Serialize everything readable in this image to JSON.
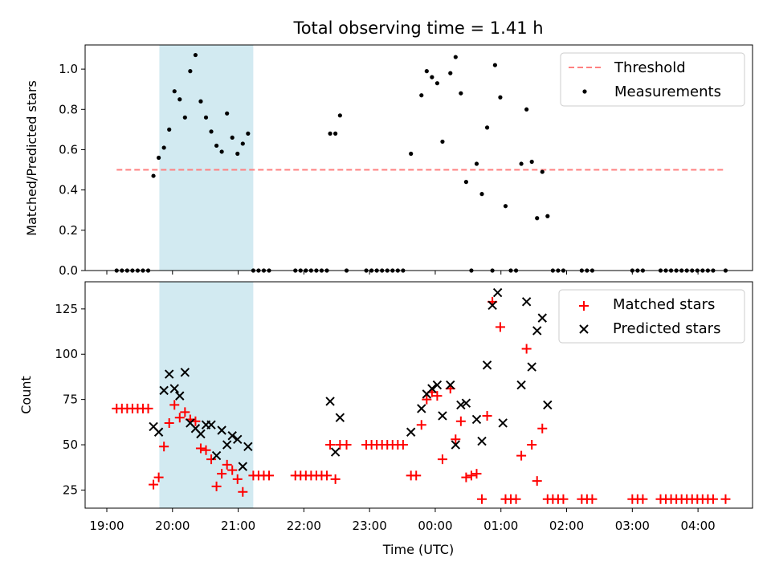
{
  "chart_data": [
    {
      "type": "scatter",
      "panel": "top",
      "title": "Total observing time = 1.41 h",
      "xlabel": "",
      "ylabel": "Matched/Predicted stars",
      "xlim": [
        18.67,
        28.83
      ],
      "ylim": [
        0,
        1.12
      ],
      "yticks": [
        0.0,
        0.2,
        0.4,
        0.6,
        0.8,
        1.0
      ],
      "ytick_labels": [
        "0.0",
        "0.2",
        "0.4",
        "0.6",
        "0.8",
        "1.0"
      ],
      "legend": {
        "placement": "top-right",
        "entries": [
          {
            "label": "Threshold",
            "kind": "dashed-line",
            "color": "#ff8080"
          },
          {
            "label": "Measurements",
            "kind": "dot",
            "color": "#000000"
          }
        ]
      },
      "highlight_span": {
        "x": [
          19.8,
          21.23
        ],
        "color": "#add8e6"
      },
      "threshold": {
        "x": [
          19.15,
          28.42
        ],
        "y": 0.5
      },
      "series": [
        {
          "name": "Measurements",
          "color": "#000000",
          "points": [
            [
              19.15,
              0
            ],
            [
              19.23,
              0
            ],
            [
              19.31,
              0
            ],
            [
              19.39,
              0
            ],
            [
              19.47,
              0
            ],
            [
              19.55,
              0
            ],
            [
              19.63,
              0
            ],
            [
              19.71,
              0.47
            ],
            [
              19.79,
              0.56
            ],
            [
              19.87,
              0.61
            ],
            [
              19.95,
              0.7
            ],
            [
              20.03,
              0.89
            ],
            [
              20.11,
              0.85
            ],
            [
              20.19,
              0.76
            ],
            [
              20.27,
              0.99
            ],
            [
              20.35,
              1.07
            ],
            [
              20.43,
              0.84
            ],
            [
              20.51,
              0.76
            ],
            [
              20.59,
              0.69
            ],
            [
              20.67,
              0.62
            ],
            [
              20.75,
              0.59
            ],
            [
              20.83,
              0.78
            ],
            [
              20.91,
              0.66
            ],
            [
              20.99,
              0.58
            ],
            [
              21.07,
              0.63
            ],
            [
              21.15,
              0.68
            ],
            [
              21.23,
              0
            ],
            [
              21.31,
              0
            ],
            [
              21.39,
              0
            ],
            [
              21.47,
              0
            ],
            [
              21.87,
              0
            ],
            [
              21.95,
              0
            ],
            [
              22.03,
              0
            ],
            [
              22.11,
              0
            ],
            [
              22.19,
              0
            ],
            [
              22.27,
              0
            ],
            [
              22.35,
              0
            ],
            [
              22.4,
              0.68
            ],
            [
              22.48,
              0.68
            ],
            [
              22.55,
              0.77
            ],
            [
              22.65,
              0
            ],
            [
              22.95,
              0
            ],
            [
              23.03,
              0
            ],
            [
              23.11,
              0
            ],
            [
              23.19,
              0
            ],
            [
              23.27,
              0
            ],
            [
              23.35,
              0
            ],
            [
              23.43,
              0
            ],
            [
              23.51,
              0
            ],
            [
              23.63,
              0.58
            ],
            [
              23.79,
              0.87
            ],
            [
              23.87,
              0.99
            ],
            [
              23.95,
              0.96
            ],
            [
              24.03,
              0.93
            ],
            [
              24.11,
              0.64
            ],
            [
              24.23,
              0.98
            ],
            [
              24.31,
              1.06
            ],
            [
              24.39,
              0.88
            ],
            [
              24.47,
              0.44
            ],
            [
              24.55,
              0
            ],
            [
              24.63,
              0.53
            ],
            [
              24.71,
              0.38
            ],
            [
              24.79,
              0.71
            ],
            [
              24.87,
              0
            ],
            [
              24.91,
              1.02
            ],
            [
              24.99,
              0.86
            ],
            [
              25.07,
              0.32
            ],
            [
              25.15,
              0
            ],
            [
              25.23,
              0
            ],
            [
              25.31,
              0.53
            ],
            [
              25.39,
              0.8
            ],
            [
              25.47,
              0.54
            ],
            [
              25.55,
              0.26
            ],
            [
              25.63,
              0.49
            ],
            [
              25.71,
              0.27
            ],
            [
              25.79,
              0
            ],
            [
              25.87,
              0
            ],
            [
              25.95,
              0
            ],
            [
              26.23,
              0
            ],
            [
              26.31,
              0
            ],
            [
              26.39,
              0
            ],
            [
              27.0,
              0
            ],
            [
              27.08,
              0
            ],
            [
              27.16,
              0
            ],
            [
              27.43,
              0
            ],
            [
              27.51,
              0
            ],
            [
              27.59,
              0
            ],
            [
              27.67,
              0
            ],
            [
              27.75,
              0
            ],
            [
              27.83,
              0
            ],
            [
              27.91,
              0
            ],
            [
              27.99,
              0
            ],
            [
              28.07,
              0
            ],
            [
              28.15,
              0
            ],
            [
              28.23,
              0
            ],
            [
              28.42,
              0
            ]
          ]
        }
      ]
    },
    {
      "type": "scatter",
      "panel": "bottom",
      "xlabel": "Time (UTC)",
      "ylabel": "Count",
      "xlim": [
        18.67,
        28.83
      ],
      "ylim": [
        15,
        140
      ],
      "xticks": [
        19,
        20,
        21,
        22,
        23,
        24,
        25,
        26,
        27,
        28
      ],
      "xtick_labels": [
        "19:00",
        "20:00",
        "21:00",
        "22:00",
        "23:00",
        "00:00",
        "01:00",
        "02:00",
        "03:00",
        "04:00"
      ],
      "yticks": [
        25,
        50,
        75,
        100,
        125
      ],
      "ytick_labels": [
        "25",
        "50",
        "75",
        "100",
        "125"
      ],
      "legend": {
        "placement": "top-right",
        "entries": [
          {
            "label": "Matched stars",
            "kind": "plus",
            "color": "#ff0000"
          },
          {
            "label": "Predicted stars",
            "kind": "cross",
            "color": "#000000"
          }
        ]
      },
      "highlight_span": {
        "x": [
          19.8,
          21.23
        ],
        "color": "#add8e6"
      },
      "series": [
        {
          "name": "Matched stars",
          "color": "#ff0000",
          "marker": "plus",
          "points": [
            [
              19.15,
              70
            ],
            [
              19.23,
              70
            ],
            [
              19.31,
              70
            ],
            [
              19.39,
              70
            ],
            [
              19.47,
              70
            ],
            [
              19.55,
              70
            ],
            [
              19.63,
              70
            ],
            [
              19.71,
              28
            ],
            [
              19.79,
              32
            ],
            [
              19.87,
              49
            ],
            [
              19.95,
              62
            ],
            [
              20.03,
              72
            ],
            [
              20.11,
              65
            ],
            [
              20.19,
              68
            ],
            [
              20.27,
              64
            ],
            [
              20.35,
              63
            ],
            [
              20.43,
              48
            ],
            [
              20.51,
              47
            ],
            [
              20.59,
              42
            ],
            [
              20.67,
              27
            ],
            [
              20.75,
              34
            ],
            [
              20.83,
              39
            ],
            [
              20.91,
              36
            ],
            [
              20.99,
              31
            ],
            [
              21.07,
              24
            ],
            [
              21.23,
              33
            ],
            [
              21.31,
              33
            ],
            [
              21.39,
              33
            ],
            [
              21.47,
              33
            ],
            [
              21.87,
              33
            ],
            [
              21.95,
              33
            ],
            [
              22.03,
              33
            ],
            [
              22.11,
              33
            ],
            [
              22.19,
              33
            ],
            [
              22.27,
              33
            ],
            [
              22.35,
              33
            ],
            [
              22.4,
              50
            ],
            [
              22.48,
              31
            ],
            [
              22.55,
              50
            ],
            [
              22.65,
              50
            ],
            [
              22.95,
              50
            ],
            [
              23.03,
              50
            ],
            [
              23.11,
              50
            ],
            [
              23.19,
              50
            ],
            [
              23.27,
              50
            ],
            [
              23.35,
              50
            ],
            [
              23.43,
              50
            ],
            [
              23.51,
              50
            ],
            [
              23.63,
              33
            ],
            [
              23.71,
              33
            ],
            [
              23.79,
              61
            ],
            [
              23.87,
              75
            ],
            [
              23.95,
              79
            ],
            [
              24.03,
              77
            ],
            [
              24.11,
              42
            ],
            [
              24.23,
              81
            ],
            [
              24.31,
              53
            ],
            [
              24.39,
              63
            ],
            [
              24.47,
              32
            ],
            [
              24.55,
              33
            ],
            [
              24.63,
              34
            ],
            [
              24.71,
              20
            ],
            [
              24.79,
              66
            ],
            [
              24.87,
              129
            ],
            [
              24.99,
              115
            ],
            [
              25.07,
              20
            ],
            [
              25.15,
              20
            ],
            [
              25.23,
              20
            ],
            [
              25.31,
              44
            ],
            [
              25.39,
              103
            ],
            [
              25.47,
              50
            ],
            [
              25.55,
              30
            ],
            [
              25.63,
              59
            ],
            [
              25.71,
              20
            ],
            [
              25.79,
              20
            ],
            [
              25.87,
              20
            ],
            [
              25.95,
              20
            ],
            [
              26.23,
              20
            ],
            [
              26.31,
              20
            ],
            [
              26.39,
              20
            ],
            [
              27.0,
              20
            ],
            [
              27.08,
              20
            ],
            [
              27.16,
              20
            ],
            [
              27.43,
              20
            ],
            [
              27.51,
              20
            ],
            [
              27.59,
              20
            ],
            [
              27.67,
              20
            ],
            [
              27.75,
              20
            ],
            [
              27.83,
              20
            ],
            [
              27.91,
              20
            ],
            [
              27.99,
              20
            ],
            [
              28.07,
              20
            ],
            [
              28.15,
              20
            ],
            [
              28.23,
              20
            ],
            [
              28.42,
              20
            ]
          ]
        },
        {
          "name": "Predicted stars",
          "color": "#000000",
          "marker": "cross",
          "points": [
            [
              19.71,
              60
            ],
            [
              19.79,
              57
            ],
            [
              19.87,
              80
            ],
            [
              19.95,
              89
            ],
            [
              20.03,
              81
            ],
            [
              20.11,
              77
            ],
            [
              20.19,
              90
            ],
            [
              20.27,
              62
            ],
            [
              20.35,
              59
            ],
            [
              20.43,
              56
            ],
            [
              20.51,
              61
            ],
            [
              20.59,
              61
            ],
            [
              20.67,
              44
            ],
            [
              20.75,
              58
            ],
            [
              20.83,
              50
            ],
            [
              20.91,
              55
            ],
            [
              20.99,
              53
            ],
            [
              21.07,
              38
            ],
            [
              21.15,
              49
            ],
            [
              22.4,
              74
            ],
            [
              22.48,
              46
            ],
            [
              22.55,
              65
            ],
            [
              23.63,
              57
            ],
            [
              23.79,
              70
            ],
            [
              23.87,
              78
            ],
            [
              23.95,
              81
            ],
            [
              24.03,
              83
            ],
            [
              24.11,
              66
            ],
            [
              24.23,
              83
            ],
            [
              24.31,
              50
            ],
            [
              24.39,
              72
            ],
            [
              24.47,
              73
            ],
            [
              24.63,
              64
            ],
            [
              24.71,
              52
            ],
            [
              24.79,
              94
            ],
            [
              24.87,
              127
            ],
            [
              24.95,
              134
            ],
            [
              25.03,
              62
            ],
            [
              25.31,
              83
            ],
            [
              25.39,
              129
            ],
            [
              25.47,
              93
            ],
            [
              25.55,
              113
            ],
            [
              25.63,
              120
            ],
            [
              25.71,
              72
            ]
          ]
        }
      ]
    }
  ]
}
